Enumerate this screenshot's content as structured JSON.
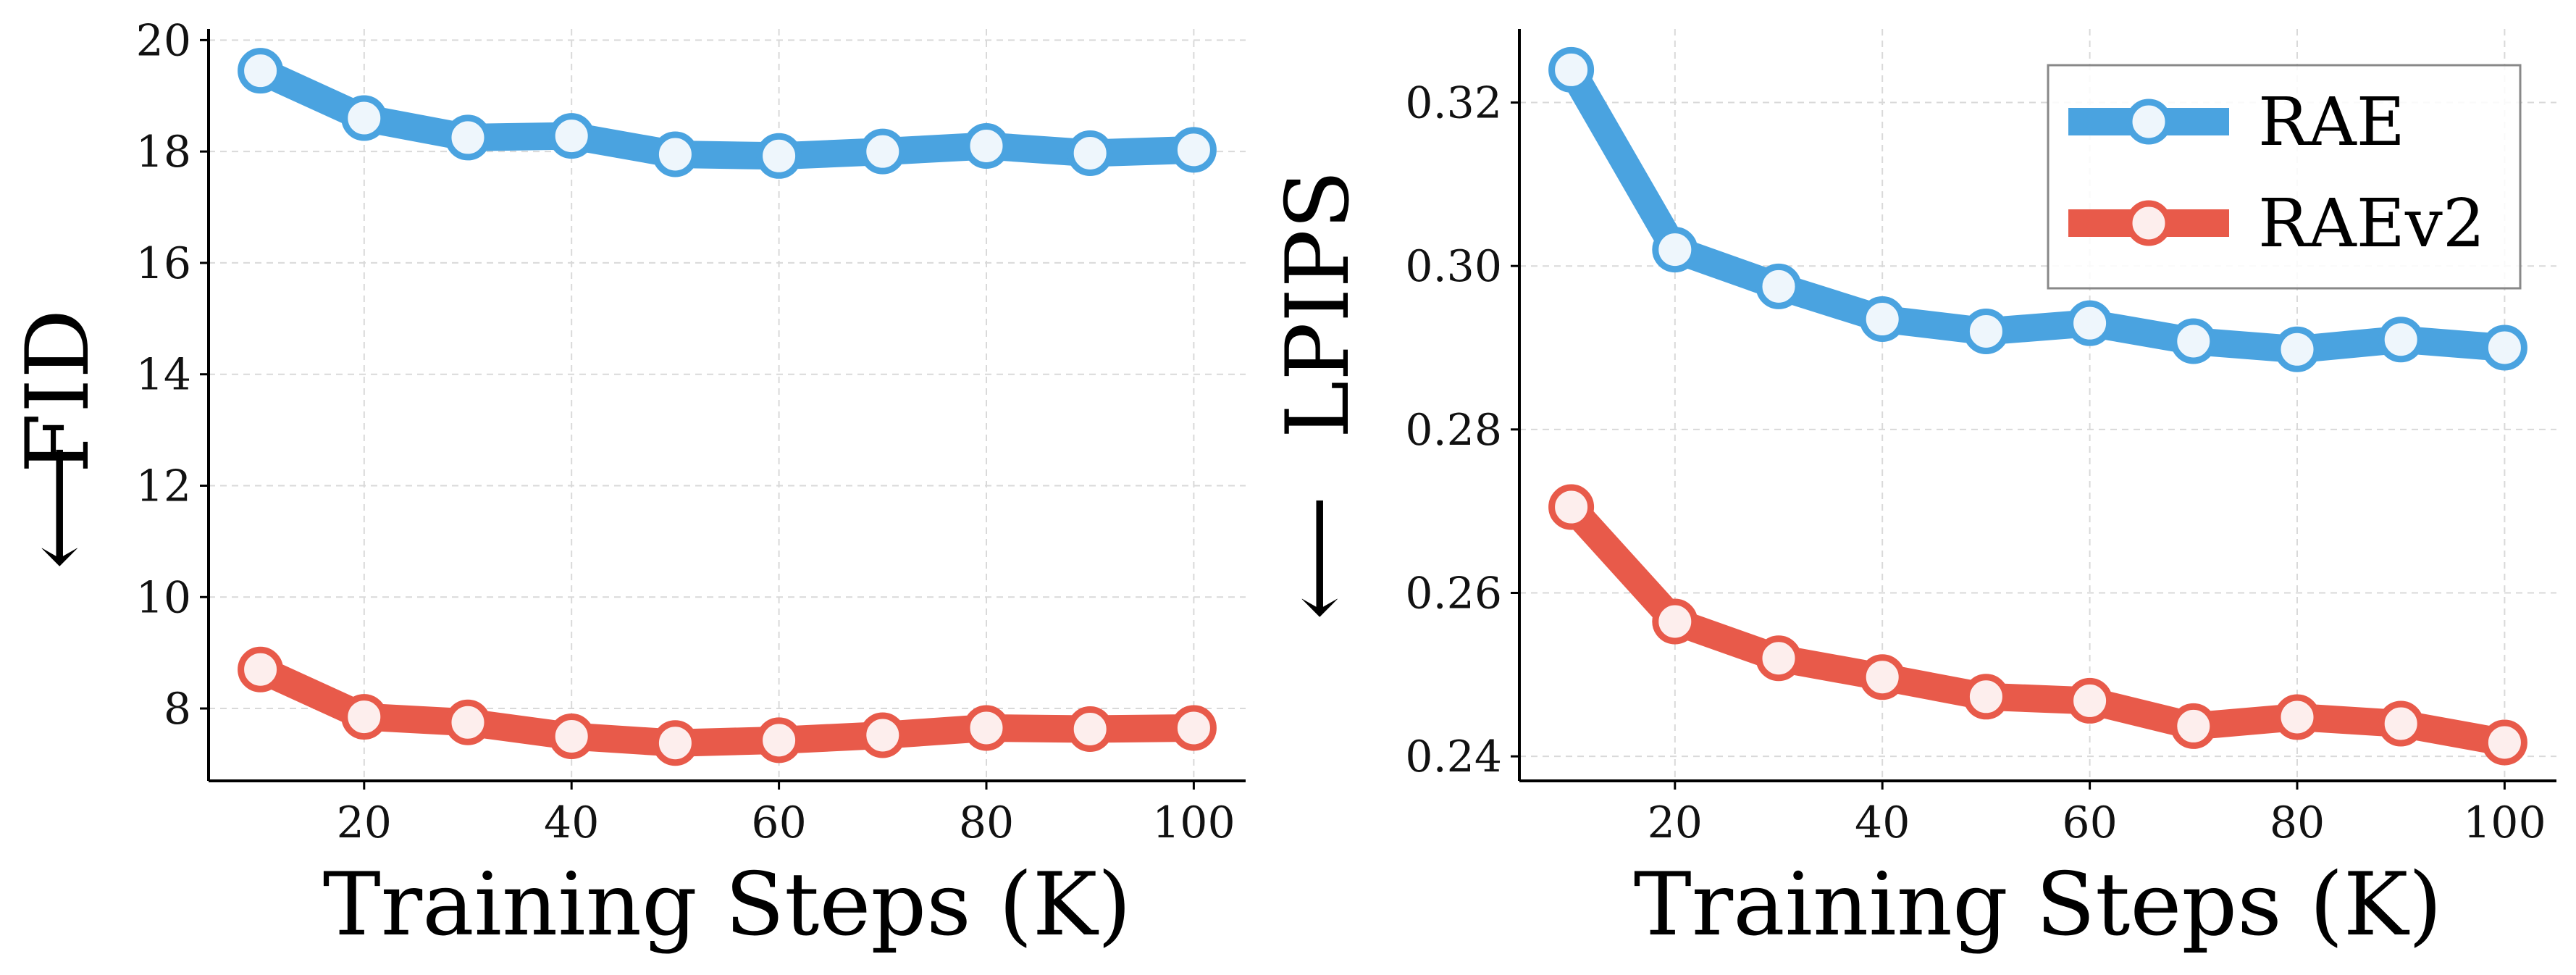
{
  "chart_data": [
    {
      "type": "line",
      "xlabel": "Training Steps (K)",
      "ylabel": "FID",
      "ylabel_arrow": "⟵",
      "x": [
        10,
        20,
        30,
        40,
        50,
        60,
        70,
        80,
        90,
        100
      ],
      "xlim": [
        5,
        105
      ],
      "ylim": [
        6.7,
        20.2
      ],
      "xticks": [
        20,
        40,
        60,
        80,
        100
      ],
      "yticks": [
        8,
        10,
        12,
        14,
        16,
        18,
        20
      ],
      "grid": true,
      "series": [
        {
          "name": "RAE",
          "color": "#4aa3e0",
          "values": [
            19.45,
            18.6,
            18.25,
            18.28,
            17.95,
            17.92,
            18.0,
            18.1,
            17.97,
            18.03
          ]
        },
        {
          "name": "RAEv2",
          "color": "#e85a4a",
          "values": [
            8.7,
            7.85,
            7.75,
            7.5,
            7.38,
            7.43,
            7.52,
            7.65,
            7.63,
            7.65
          ]
        }
      ]
    },
    {
      "type": "line",
      "xlabel": "Training Steps (K)",
      "ylabel": "LPIPS",
      "ylabel_arrow": "⟵",
      "x": [
        10,
        20,
        30,
        40,
        50,
        60,
        70,
        80,
        90,
        100
      ],
      "xlim": [
        5,
        105
      ],
      "ylim": [
        0.237,
        0.329
      ],
      "xticks": [
        20,
        40,
        60,
        80,
        100
      ],
      "yticks": [
        0.24,
        0.26,
        0.28,
        0.3,
        0.32
      ],
      "grid": true,
      "legend": "top-right",
      "series": [
        {
          "name": "RAE",
          "color": "#4aa3e0",
          "values": [
            0.324,
            0.302,
            0.2975,
            0.2935,
            0.292,
            0.293,
            0.2908,
            0.2898,
            0.291,
            0.29
          ]
        },
        {
          "name": "RAEv2",
          "color": "#e85a4a",
          "values": [
            0.2705,
            0.2565,
            0.252,
            0.2497,
            0.2473,
            0.2468,
            0.2437,
            0.2448,
            0.244,
            0.2417
          ]
        }
      ]
    }
  ]
}
